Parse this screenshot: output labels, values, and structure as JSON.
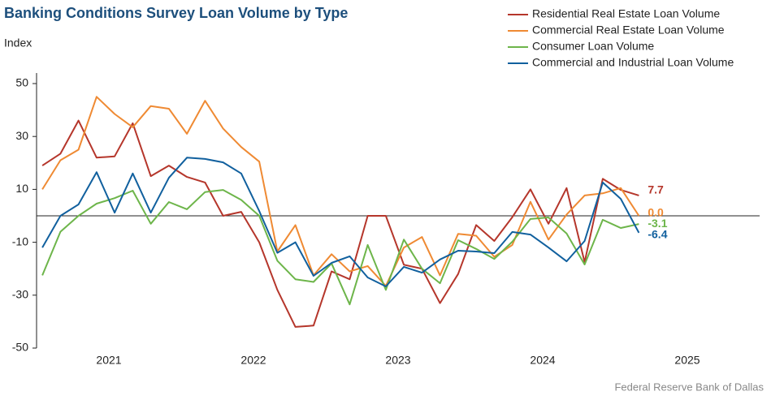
{
  "chart_data": {
    "type": "line",
    "title": "Banking Conditions Survey Loan Volume by Type",
    "y_label": "Index",
    "source": "Federal Reserve Bank of Dallas",
    "x": [
      2021.04,
      2021.165,
      2021.29,
      2021.415,
      2021.54,
      2021.665,
      2021.79,
      2021.915,
      2022.04,
      2022.165,
      2022.29,
      2022.415,
      2022.54,
      2022.665,
      2022.79,
      2022.915,
      2023.04,
      2023.165,
      2023.29,
      2023.415,
      2023.54,
      2023.665,
      2023.79,
      2023.915,
      2024.04,
      2024.165,
      2024.29,
      2024.415,
      2024.54,
      2024.665,
      2024.79,
      2024.915,
      2025.04,
      2025.165
    ],
    "xlim": [
      2021,
      2026
    ],
    "xticks": [
      {
        "value": 2021.5,
        "label": "2021"
      },
      {
        "value": 2022.5,
        "label": "2022"
      },
      {
        "value": 2023.5,
        "label": "2023"
      },
      {
        "value": 2024.5,
        "label": "2024"
      },
      {
        "value": 2025.5,
        "label": "2025"
      }
    ],
    "ylim": [
      -50,
      50
    ],
    "yticks": [
      -50,
      -30,
      -10,
      10,
      30,
      50
    ],
    "grid": false,
    "legend": "top-right",
    "series": [
      {
        "name": "Residential Real Estate Loan Volume",
        "color": "#b5362b",
        "end_label": "7.7",
        "values": [
          19,
          23.5,
          36,
          22,
          22.5,
          35,
          15,
          19,
          14.7,
          12.6,
          0,
          1.5,
          -10,
          -28,
          -42,
          -41.5,
          -21,
          -24,
          0,
          0,
          -18.5,
          -20,
          -33,
          -22,
          -3.5,
          -9.5,
          -0.5,
          10,
          -3,
          10.5,
          -17.5,
          14,
          9.8,
          7.7
        ]
      },
      {
        "name": "Commercial Real Estate Loan Volume",
        "color": "#ef8a33",
        "end_label": "0.0",
        "values": [
          10,
          21,
          25,
          45,
          38.5,
          33.5,
          41.5,
          40.5,
          31,
          43.5,
          33,
          26,
          20.5,
          -13.5,
          -3.5,
          -22.5,
          -14.5,
          -21,
          -19,
          -26.5,
          -12,
          -8,
          -22.5,
          -6.8,
          -7.5,
          -15.5,
          -11,
          5.3,
          -9,
          0.5,
          7.7,
          8.5,
          10.5,
          0.0
        ]
      },
      {
        "name": "Consumer Loan Volume",
        "color": "#6db54a",
        "end_label": "-3.1",
        "values": [
          -22.5,
          -6,
          0,
          4.6,
          6.7,
          9.5,
          -3,
          5.2,
          2.5,
          9,
          9.8,
          6,
          0,
          -17,
          -24,
          -25,
          -18,
          -33.5,
          -11,
          -28,
          -9,
          -20,
          -25.5,
          -9.2,
          -12.5,
          -16.3,
          -9.8,
          -1.2,
          -0.6,
          -6.7,
          -18.4,
          -1.5,
          -4.6,
          -3.1
        ]
      },
      {
        "name": "Commercial and Industrial Loan Volume",
        "color": "#11609e",
        "end_label": "-6.4",
        "values": [
          -12,
          0,
          4.3,
          16.5,
          1.2,
          16,
          1.2,
          14.4,
          22,
          21.5,
          20.2,
          16,
          1.8,
          -14,
          -10,
          -22.7,
          -17.8,
          -15.3,
          -23.3,
          -26.7,
          -19.3,
          -21.5,
          -16.5,
          -13.2,
          -13.5,
          -14.1,
          -6.1,
          -7.1,
          -12,
          -17.2,
          -9.5,
          12.6,
          6.4,
          -6.4
        ]
      }
    ]
  }
}
